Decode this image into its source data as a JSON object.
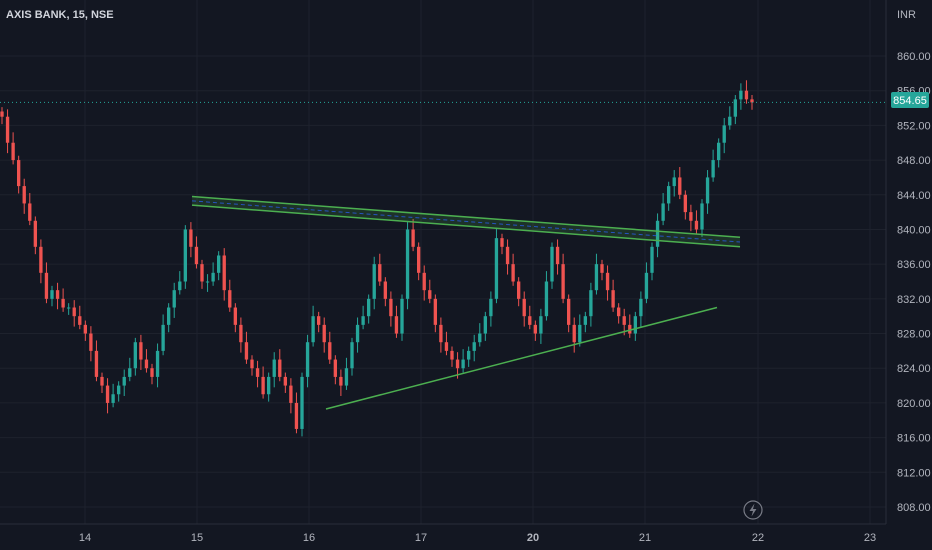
{
  "symbol_title": "AXIS BANK, 15, NSE",
  "currency": "INR",
  "price_badge": "854.65",
  "colors": {
    "background": "#131722",
    "grid": "#1e222d",
    "up": "#26a69a",
    "down": "#ef5350",
    "trendline": "#4caf50",
    "price_line": "#26a69a",
    "axis_text": "#b2b5be"
  },
  "chart_data": {
    "type": "candlestick",
    "title": "AXIS BANK, 15, NSE",
    "ylim": [
      806,
      864
    ],
    "y_ticks": [
      "860.00",
      "856.00",
      "852.00",
      "848.00",
      "844.00",
      "840.00",
      "836.00",
      "832.00",
      "828.00",
      "824.00",
      "820.00",
      "816.00",
      "812.00",
      "808.00"
    ],
    "x_tick_labels": [
      "14",
      "15",
      "16",
      "17",
      "20",
      "21",
      "22",
      "23"
    ],
    "grid": true,
    "last_price": 854.65,
    "trendlines": [
      {
        "name": "resistance-upper",
        "from": [
          0,
          843.8
        ],
        "to": [
          1,
          839.1
        ]
      },
      {
        "name": "resistance-lower",
        "from": [
          0,
          842.8
        ],
        "to": [
          1,
          838.0
        ]
      },
      {
        "name": "support",
        "from": [
          0,
          819.3
        ],
        "to": [
          1,
          831.0
        ]
      }
    ],
    "closes": [
      853,
      850,
      848,
      845,
      843,
      841,
      838,
      835,
      832,
      833,
      832,
      831,
      831,
      830,
      829,
      828,
      826,
      823,
      822,
      820,
      821,
      822,
      823,
      824,
      827,
      825,
      824,
      823,
      826,
      829,
      831,
      833,
      834,
      840,
      838,
      836,
      834,
      834,
      835,
      837,
      833,
      831,
      829,
      827,
      825,
      824,
      823,
      821,
      823,
      825,
      823,
      822,
      820,
      817,
      823,
      827,
      830,
      829,
      827,
      825,
      823,
      822,
      824,
      827,
      829,
      830,
      832,
      836,
      834,
      832,
      830,
      828,
      832,
      840,
      838,
      835,
      833,
      832,
      829,
      827,
      826,
      825,
      824,
      825,
      826,
      827,
      828,
      830,
      832,
      839,
      838,
      836,
      834,
      832,
      830,
      829,
      828,
      830,
      834,
      838,
      836,
      832,
      829,
      827,
      829,
      830,
      833,
      836,
      835,
      833,
      831,
      830,
      829,
      828,
      830,
      832,
      835,
      838,
      841,
      843,
      845,
      846,
      844,
      842,
      841,
      840,
      843,
      846,
      848,
      850,
      852,
      853,
      855,
      856,
      855,
      854.65
    ]
  }
}
